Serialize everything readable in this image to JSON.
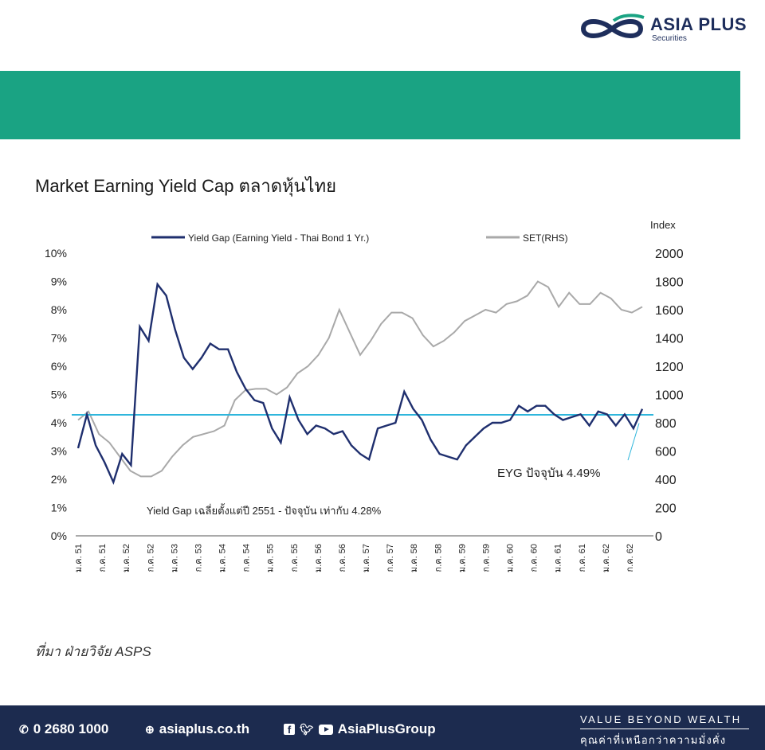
{
  "brand": {
    "name": "ASIA PLUS",
    "sub": "Securities",
    "colors": {
      "navy": "#1c2b4f",
      "teal": "#1aa383",
      "line_navy": "#1f2f6e",
      "line_gray": "#a9a9a9",
      "avg_line": "#2fb6dc"
    }
  },
  "title": "Market Earning Yield Cap ตลาดหุ้นไทย",
  "source": "ที่มา ฝ่ายวิจัย ASPS",
  "chart_data": {
    "type": "line",
    "legend": [
      "Yield Gap (Earning Yield - Thai Bond 1 Yr.)",
      "SET(RHS)"
    ],
    "legend_placement": "top",
    "y_left": {
      "ticks": [
        "0%",
        "1%",
        "2%",
        "3%",
        "4%",
        "5%",
        "6%",
        "7%",
        "8%",
        "9%",
        "10%"
      ],
      "range": [
        0,
        10
      ]
    },
    "y_right": {
      "label": "Index",
      "ticks": [
        "0",
        "200",
        "400",
        "600",
        "800",
        "1000",
        "1200",
        "1400",
        "1600",
        "1800",
        "2000"
      ],
      "range": [
        0,
        2000
      ]
    },
    "x_ticks": [
      "ม.ค. 51",
      "ก.ค. 51",
      "ม.ค. 52",
      "ก.ค. 52",
      "ม.ค. 53",
      "ก.ค. 53",
      "ม.ค. 54",
      "ก.ค. 54",
      "ม.ค. 55",
      "ก.ค. 55",
      "ม.ค. 56",
      "ก.ค. 56",
      "ม.ค. 57",
      "ก.ค. 57",
      "ม.ค. 58",
      "ก.ค. 58",
      "ม.ค. 59",
      "ก.ค. 59",
      "ม.ค. 60",
      "ก.ค. 60",
      "ม.ค. 61",
      "ก.ค. 61",
      "ม.ค. 62",
      "ก.ค. 62"
    ],
    "series": [
      {
        "name": "Yield Gap (Earning Yield - Thai Bond 1 Yr.)",
        "axis": "left",
        "values": [
          3.1,
          4.3,
          3.2,
          2.6,
          1.9,
          2.9,
          2.5,
          7.4,
          6.9,
          8.9,
          8.5,
          7.3,
          6.3,
          5.9,
          6.3,
          6.8,
          6.6,
          6.6,
          5.8,
          5.2,
          4.8,
          4.7,
          3.8,
          3.3,
          4.9,
          4.1,
          3.6,
          3.9,
          3.8,
          3.6,
          3.7,
          3.2,
          2.9,
          2.7,
          3.8,
          3.9,
          4.0,
          5.1,
          4.5,
          4.1,
          3.4,
          2.9,
          2.8,
          2.7,
          3.2,
          3.5,
          3.8,
          4.0,
          4.0,
          4.1,
          4.6,
          4.4,
          4.6,
          4.6,
          4.3,
          4.1,
          4.2,
          4.3,
          3.9,
          4.4,
          4.3,
          3.9,
          4.3,
          3.8,
          4.49
        ],
        "current_label": "EYG ปัจจุบัน 4.49%"
      },
      {
        "name": "SET(RHS)",
        "axis": "right",
        "values": [
          820,
          880,
          720,
          660,
          560,
          460,
          420,
          420,
          460,
          560,
          640,
          700,
          720,
          740,
          780,
          960,
          1030,
          1040,
          1040,
          1000,
          1050,
          1150,
          1200,
          1280,
          1400,
          1600,
          1440,
          1280,
          1380,
          1500,
          1580,
          1580,
          1540,
          1420,
          1340,
          1380,
          1440,
          1520,
          1560,
          1600,
          1580,
          1640,
          1660,
          1700,
          1800,
          1760,
          1620,
          1720,
          1640,
          1640,
          1720,
          1680,
          1600,
          1580,
          1620
        ]
      }
    ],
    "average": {
      "value": 4.28,
      "label": "Yield Gap เฉลี่ยตั้งแต่ปี 2551 - ปัจจุบัน เท่ากับ 4.28%"
    },
    "grid": false
  },
  "footer": {
    "phone": "0 2680 1000",
    "website": "asiaplus.co.th",
    "social": "AsiaPlusGroup",
    "tagline_en": "VALUE BEYOND WEALTH",
    "tagline_th": "คุณค่าที่เหนือกว่าความมั่งคั่ง"
  }
}
